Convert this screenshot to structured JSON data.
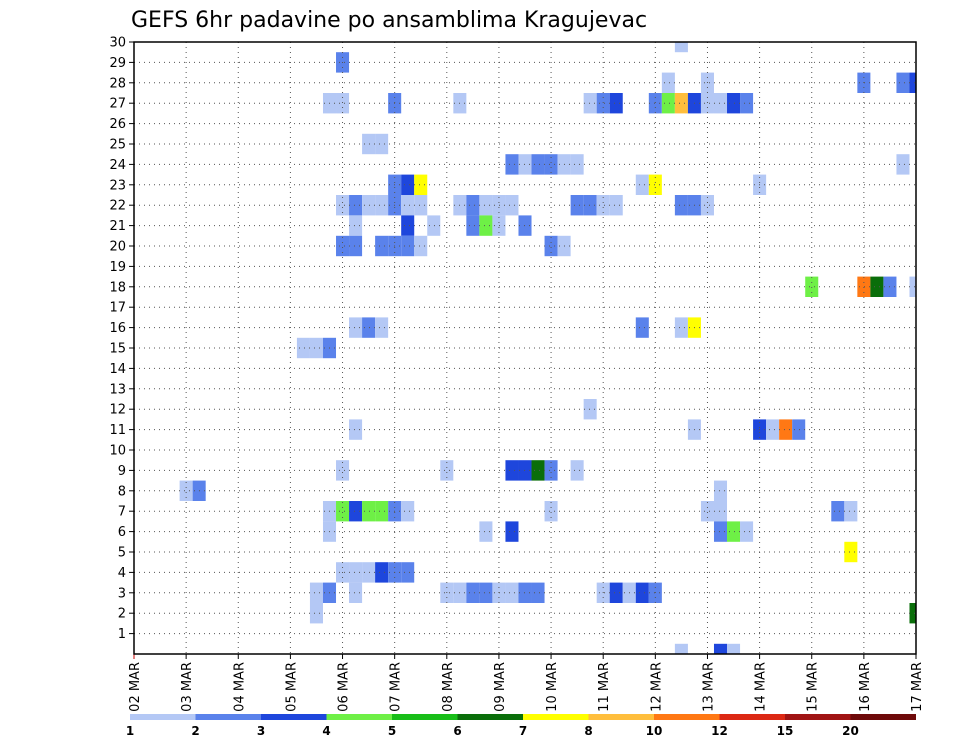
{
  "chart_data": {
    "type": "heatmap",
    "title": "GEFS 6hr padavine po ansamblima Kragujevac",
    "xlabel": "",
    "ylabel": "",
    "x_range": [
      0,
      60
    ],
    "y_range": [
      0,
      30
    ],
    "grid": true,
    "x_ticks": [
      {
        "pos": 0,
        "label": "02 MAR"
      },
      {
        "pos": 4,
        "label": "03 MAR"
      },
      {
        "pos": 8,
        "label": "04 MAR"
      },
      {
        "pos": 12,
        "label": "05 MAR"
      },
      {
        "pos": 16,
        "label": "06 MAR"
      },
      {
        "pos": 20,
        "label": "07 MAR"
      },
      {
        "pos": 24,
        "label": "08 MAR"
      },
      {
        "pos": 28,
        "label": "09 MAR"
      },
      {
        "pos": 32,
        "label": "10 MAR"
      },
      {
        "pos": 36,
        "label": "11 MAR"
      },
      {
        "pos": 40,
        "label": "12 MAR"
      },
      {
        "pos": 44,
        "label": "13 MAR"
      },
      {
        "pos": 48,
        "label": "14 MAR"
      },
      {
        "pos": 52,
        "label": "15 MAR"
      },
      {
        "pos": 56,
        "label": "16 MAR"
      },
      {
        "pos": 60,
        "label": "17 MAR"
      }
    ],
    "y_ticks": [
      "1",
      "2",
      "3",
      "4",
      "5",
      "6",
      "7",
      "8",
      "9",
      "10",
      "11",
      "12",
      "13",
      "14",
      "15",
      "16",
      "17",
      "18",
      "19",
      "20",
      "21",
      "22",
      "23",
      "24",
      "25",
      "26",
      "27",
      "28",
      "29",
      "30"
    ],
    "legend": {
      "position": "bottom",
      "labels": [
        "1",
        "2",
        "3",
        "4",
        "5",
        "6",
        "7",
        "8",
        "10",
        "12",
        "15",
        "20"
      ],
      "colors": [
        "#b4c8f5",
        "#5a82eb",
        "#1e46dc",
        "#6ef046",
        "#18be18",
        "#0a6e0a",
        "#ffff00",
        "#ffbe3c",
        "#ff7814",
        "#dc2814",
        "#a01414",
        "#6e0a0a"
      ]
    },
    "cells": [
      {
        "x": 42,
        "y": 30,
        "v": 1
      },
      {
        "x": 16,
        "y": 29,
        "v": 2
      },
      {
        "x": 41,
        "y": 28,
        "v": 1
      },
      {
        "x": 44,
        "y": 28,
        "v": 1
      },
      {
        "x": 56,
        "y": 28,
        "v": 2
      },
      {
        "x": 59,
        "y": 28,
        "v": 2
      },
      {
        "x": 60,
        "y": 28,
        "v": 3
      },
      {
        "x": 15,
        "y": 27,
        "v": 1
      },
      {
        "x": 16,
        "y": 27,
        "v": 1
      },
      {
        "x": 20,
        "y": 27,
        "v": 2
      },
      {
        "x": 25,
        "y": 27,
        "v": 1
      },
      {
        "x": 35,
        "y": 27,
        "v": 1
      },
      {
        "x": 36,
        "y": 27,
        "v": 2
      },
      {
        "x": 37,
        "y": 27,
        "v": 3
      },
      {
        "x": 40,
        "y": 27,
        "v": 2
      },
      {
        "x": 41,
        "y": 27,
        "v": 4
      },
      {
        "x": 42,
        "y": 27,
        "v": 8
      },
      {
        "x": 43,
        "y": 27,
        "v": 3
      },
      {
        "x": 44,
        "y": 27,
        "v": 1
      },
      {
        "x": 45,
        "y": 27,
        "v": 1
      },
      {
        "x": 46,
        "y": 27,
        "v": 3
      },
      {
        "x": 47,
        "y": 27,
        "v": 2
      },
      {
        "x": 18,
        "y": 25,
        "v": 1
      },
      {
        "x": 19,
        "y": 25,
        "v": 1
      },
      {
        "x": 29,
        "y": 24,
        "v": 2
      },
      {
        "x": 30,
        "y": 24,
        "v": 1
      },
      {
        "x": 31,
        "y": 24,
        "v": 2
      },
      {
        "x": 32,
        "y": 24,
        "v": 2
      },
      {
        "x": 33,
        "y": 24,
        "v": 1
      },
      {
        "x": 34,
        "y": 24,
        "v": 1
      },
      {
        "x": 59,
        "y": 24,
        "v": 1
      },
      {
        "x": 20,
        "y": 23,
        "v": 2
      },
      {
        "x": 21,
        "y": 23,
        "v": 3
      },
      {
        "x": 22,
        "y": 23,
        "v": 7
      },
      {
        "x": 39,
        "y": 23,
        "v": 1
      },
      {
        "x": 40,
        "y": 23,
        "v": 7
      },
      {
        "x": 48,
        "y": 23,
        "v": 1
      },
      {
        "x": 16,
        "y": 22,
        "v": 1
      },
      {
        "x": 17,
        "y": 22,
        "v": 2
      },
      {
        "x": 18,
        "y": 22,
        "v": 1
      },
      {
        "x": 19,
        "y": 22,
        "v": 1
      },
      {
        "x": 20,
        "y": 22,
        "v": 2
      },
      {
        "x": 21,
        "y": 22,
        "v": 1
      },
      {
        "x": 22,
        "y": 22,
        "v": 1
      },
      {
        "x": 25,
        "y": 22,
        "v": 1
      },
      {
        "x": 26,
        "y": 22,
        "v": 2
      },
      {
        "x": 27,
        "y": 22,
        "v": 1
      },
      {
        "x": 28,
        "y": 22,
        "v": 1
      },
      {
        "x": 29,
        "y": 22,
        "v": 1
      },
      {
        "x": 34,
        "y": 22,
        "v": 2
      },
      {
        "x": 35,
        "y": 22,
        "v": 2
      },
      {
        "x": 36,
        "y": 22,
        "v": 1
      },
      {
        "x": 37,
        "y": 22,
        "v": 1
      },
      {
        "x": 42,
        "y": 22,
        "v": 2
      },
      {
        "x": 43,
        "y": 22,
        "v": 2
      },
      {
        "x": 44,
        "y": 22,
        "v": 1
      },
      {
        "x": 17,
        "y": 21,
        "v": 1
      },
      {
        "x": 21,
        "y": 21,
        "v": 3
      },
      {
        "x": 23,
        "y": 21,
        "v": 1
      },
      {
        "x": 26,
        "y": 21,
        "v": 2
      },
      {
        "x": 27,
        "y": 21,
        "v": 4
      },
      {
        "x": 28,
        "y": 21,
        "v": 1
      },
      {
        "x": 30,
        "y": 21,
        "v": 2
      },
      {
        "x": 16,
        "y": 20,
        "v": 2
      },
      {
        "x": 17,
        "y": 20,
        "v": 2
      },
      {
        "x": 19,
        "y": 20,
        "v": 2
      },
      {
        "x": 20,
        "y": 20,
        "v": 2
      },
      {
        "x": 21,
        "y": 20,
        "v": 2
      },
      {
        "x": 22,
        "y": 20,
        "v": 1
      },
      {
        "x": 32,
        "y": 20,
        "v": 2
      },
      {
        "x": 33,
        "y": 20,
        "v": 1
      },
      {
        "x": 52,
        "y": 18,
        "v": 4
      },
      {
        "x": 56,
        "y": 18,
        "v": 10
      },
      {
        "x": 57,
        "y": 18,
        "v": 6
      },
      {
        "x": 58,
        "y": 18,
        "v": 2
      },
      {
        "x": 60,
        "y": 18,
        "v": 1
      },
      {
        "x": 17,
        "y": 16,
        "v": 1
      },
      {
        "x": 18,
        "y": 16,
        "v": 2
      },
      {
        "x": 19,
        "y": 16,
        "v": 1
      },
      {
        "x": 39,
        "y": 16,
        "v": 2
      },
      {
        "x": 42,
        "y": 16,
        "v": 1
      },
      {
        "x": 43,
        "y": 16,
        "v": 7
      },
      {
        "x": 13,
        "y": 15,
        "v": 1
      },
      {
        "x": 14,
        "y": 15,
        "v": 1
      },
      {
        "x": 15,
        "y": 15,
        "v": 2
      },
      {
        "x": 35,
        "y": 12,
        "v": 1
      },
      {
        "x": 17,
        "y": 11,
        "v": 1
      },
      {
        "x": 43,
        "y": 11,
        "v": 1
      },
      {
        "x": 48,
        "y": 11,
        "v": 3
      },
      {
        "x": 49,
        "y": 11,
        "v": 1
      },
      {
        "x": 50,
        "y": 11,
        "v": 10
      },
      {
        "x": 51,
        "y": 11,
        "v": 2
      },
      {
        "x": 16,
        "y": 9,
        "v": 1
      },
      {
        "x": 24,
        "y": 9,
        "v": 1
      },
      {
        "x": 29,
        "y": 9,
        "v": 3
      },
      {
        "x": 30,
        "y": 9,
        "v": 3
      },
      {
        "x": 31,
        "y": 9,
        "v": 6
      },
      {
        "x": 32,
        "y": 9,
        "v": 2
      },
      {
        "x": 34,
        "y": 9,
        "v": 1
      },
      {
        "x": 4,
        "y": 8,
        "v": 1
      },
      {
        "x": 5,
        "y": 8,
        "v": 2
      },
      {
        "x": 45,
        "y": 8,
        "v": 1
      },
      {
        "x": 15,
        "y": 7,
        "v": 1
      },
      {
        "x": 16,
        "y": 7,
        "v": 4
      },
      {
        "x": 17,
        "y": 7,
        "v": 3
      },
      {
        "x": 18,
        "y": 7,
        "v": 4
      },
      {
        "x": 19,
        "y": 7,
        "v": 4
      },
      {
        "x": 20,
        "y": 7,
        "v": 2
      },
      {
        "x": 21,
        "y": 7,
        "v": 1
      },
      {
        "x": 32,
        "y": 7,
        "v": 1
      },
      {
        "x": 44,
        "y": 7,
        "v": 1
      },
      {
        "x": 45,
        "y": 7,
        "v": 1
      },
      {
        "x": 54,
        "y": 7,
        "v": 2
      },
      {
        "x": 55,
        "y": 7,
        "v": 1
      },
      {
        "x": 15,
        "y": 6,
        "v": 1
      },
      {
        "x": 27,
        "y": 6,
        "v": 1
      },
      {
        "x": 29,
        "y": 6,
        "v": 3
      },
      {
        "x": 45,
        "y": 6,
        "v": 2
      },
      {
        "x": 46,
        "y": 6,
        "v": 4
      },
      {
        "x": 47,
        "y": 6,
        "v": 1
      },
      {
        "x": 55,
        "y": 5,
        "v": 7
      },
      {
        "x": 16,
        "y": 4,
        "v": 1
      },
      {
        "x": 17,
        "y": 4,
        "v": 1
      },
      {
        "x": 18,
        "y": 4,
        "v": 1
      },
      {
        "x": 19,
        "y": 4,
        "v": 3
      },
      {
        "x": 20,
        "y": 4,
        "v": 2
      },
      {
        "x": 21,
        "y": 4,
        "v": 2
      },
      {
        "x": 14,
        "y": 3,
        "v": 1
      },
      {
        "x": 15,
        "y": 3,
        "v": 2
      },
      {
        "x": 17,
        "y": 3,
        "v": 1
      },
      {
        "x": 24,
        "y": 3,
        "v": 1
      },
      {
        "x": 25,
        "y": 3,
        "v": 1
      },
      {
        "x": 26,
        "y": 3,
        "v": 2
      },
      {
        "x": 27,
        "y": 3,
        "v": 2
      },
      {
        "x": 28,
        "y": 3,
        "v": 1
      },
      {
        "x": 29,
        "y": 3,
        "v": 1
      },
      {
        "x": 30,
        "y": 3,
        "v": 2
      },
      {
        "x": 31,
        "y": 3,
        "v": 2
      },
      {
        "x": 36,
        "y": 3,
        "v": 1
      },
      {
        "x": 37,
        "y": 3,
        "v": 3
      },
      {
        "x": 38,
        "y": 3,
        "v": 1
      },
      {
        "x": 39,
        "y": 3,
        "v": 3
      },
      {
        "x": 40,
        "y": 3,
        "v": 2
      },
      {
        "x": 14,
        "y": 2,
        "v": 1
      },
      {
        "x": 60,
        "y": 2,
        "v": 6
      },
      {
        "x": 42,
        "y": 0,
        "v": 1
      },
      {
        "x": 45,
        "y": 0,
        "v": 3
      },
      {
        "x": 46,
        "y": 0,
        "v": 1
      }
    ]
  }
}
